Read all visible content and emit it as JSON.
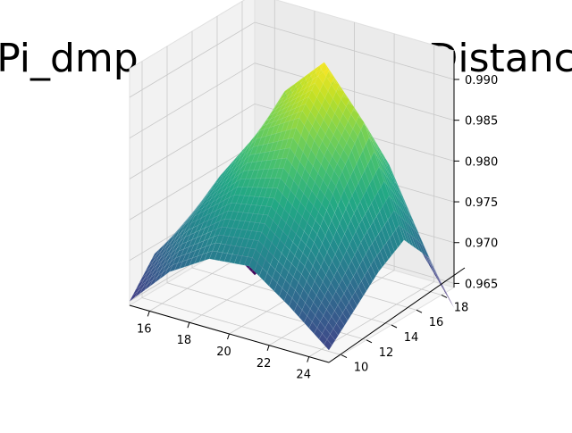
{
  "chart_data": {
    "type": "surface3d",
    "title": "Pi_dmp_on JA Frechet Distanc",
    "colormap": "viridis",
    "grid": true,
    "x_axis": {
      "ticks": [
        "16",
        "18",
        "20",
        "22",
        "24"
      ],
      "range": [
        15,
        25
      ]
    },
    "y_axis": {
      "ticks": [
        "10",
        "12",
        "14",
        "16",
        "18"
      ],
      "range": [
        9,
        19
      ]
    },
    "z_axis": {
      "ticks": [
        "0.965",
        "0.970",
        "0.975",
        "0.980",
        "0.985",
        "0.990"
      ],
      "range": [
        0.9645,
        0.9935
      ]
    },
    "surface": {
      "x": [
        15,
        17,
        19,
        21,
        23,
        25
      ],
      "y": [
        9,
        11,
        13,
        15,
        17,
        19
      ],
      "z": [
        [
          0.965,
          0.97,
          0.973,
          0.9735,
          0.97,
          0.966
        ],
        [
          0.969,
          0.975,
          0.979,
          0.98,
          0.976,
          0.969
        ],
        [
          0.97,
          0.978,
          0.985,
          0.988,
          0.982,
          0.972
        ],
        [
          0.969,
          0.977,
          0.988,
          0.993,
          0.987,
          0.974
        ],
        [
          0.964,
          0.972,
          0.981,
          0.984,
          0.98,
          0.97
        ],
        [
          0.959,
          0.965,
          0.971,
          0.972,
          0.969,
          0.962
        ]
      ]
    }
  }
}
